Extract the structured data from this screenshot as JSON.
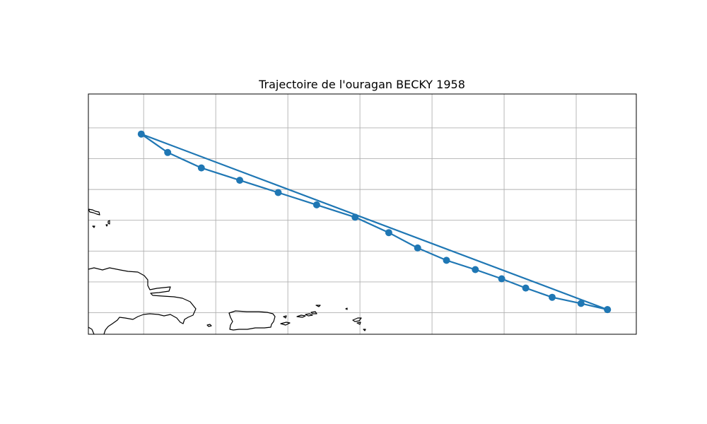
{
  "title": "Trajectoire de l'ouragan BECKY 1958",
  "colors": {
    "track": "#1f77b4",
    "grid": "#b0b0b0",
    "coast": "#000000"
  },
  "map": {
    "lon_range": [
      -68.3,
      -45.5
    ],
    "lat_range": [
      17.3,
      25.1
    ],
    "grid_lons": [
      -66,
      -63,
      -60,
      -57,
      -54,
      -51,
      -48
    ],
    "grid_lats": [
      18,
      19,
      20,
      21,
      22,
      23,
      24
    ]
  },
  "chart_data": {
    "type": "line",
    "title": "Trajectoire de l'ouragan BECKY 1958",
    "xlabel": "",
    "ylabel": "",
    "grid": true,
    "track": {
      "lon": [
        -46.7,
        -47.8,
        -49.0,
        -50.1,
        -51.1,
        -52.2,
        -53.4,
        -54.6,
        -55.8,
        -57.2,
        -58.8,
        -60.4,
        -62.0,
        -63.6,
        -65.0,
        -66.1,
        -46.7
      ],
      "lat": [
        18.1,
        18.3,
        18.5,
        18.8,
        19.1,
        19.4,
        19.7,
        20.1,
        20.6,
        21.1,
        21.5,
        21.9,
        22.3,
        22.7,
        23.2,
        23.8,
        18.1
      ]
    }
  }
}
